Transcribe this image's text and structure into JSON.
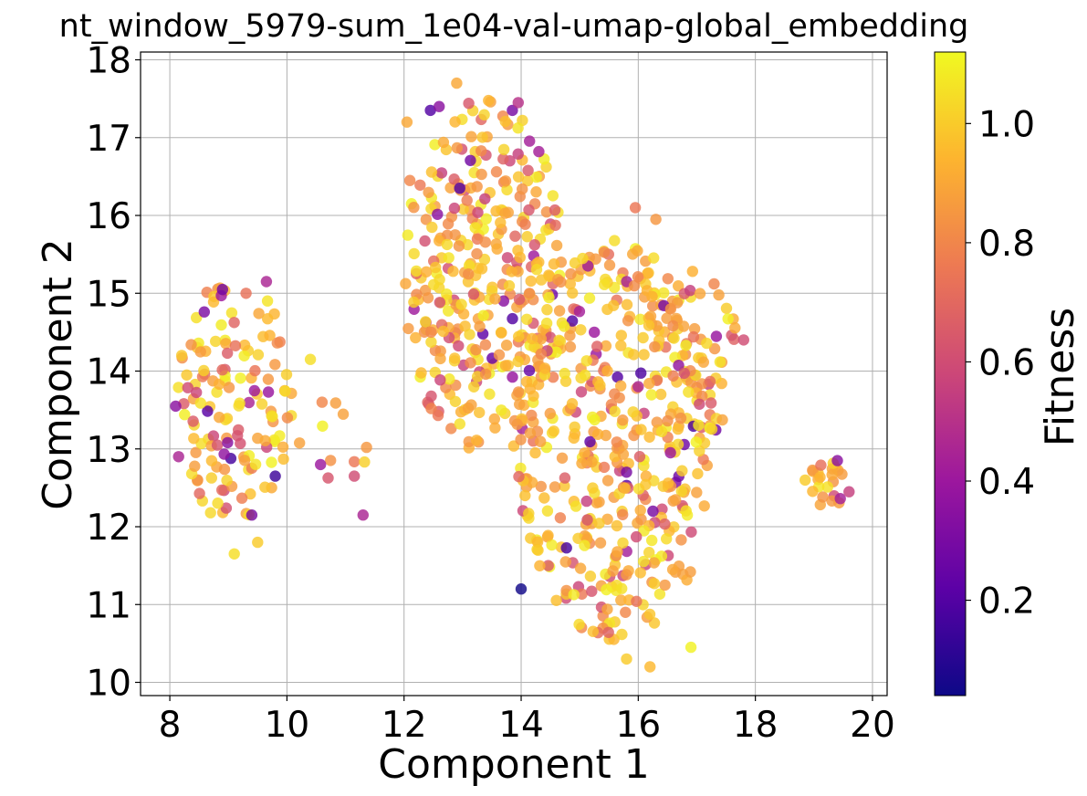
{
  "chart_data": {
    "type": "scatter",
    "title": "nt_window_5979-sum_1e04-val-umap-global_embedding",
    "xlabel": "Component 1",
    "ylabel": "Component 2",
    "xlim": [
      7.5,
      20.25
    ],
    "ylim": [
      9.83,
      18.1
    ],
    "xticks": [
      8,
      10,
      12,
      14,
      16,
      18,
      20
    ],
    "yticks": [
      10,
      11,
      12,
      13,
      14,
      15,
      16,
      17,
      18
    ],
    "grid": true,
    "colormap": "plasma",
    "colorbar": {
      "label": "Fitness",
      "range": [
        0.04,
        1.12
      ],
      "ticks": [
        0.2,
        0.4,
        0.6,
        0.8,
        1.0
      ],
      "tick_labels": [
        "0.2",
        "0.4",
        "0.6",
        "0.8",
        "1.0"
      ],
      "colors": [
        "#0d0887",
        "#5c01a6",
        "#9c179e",
        "#cc4778",
        "#ed7953",
        "#fdb42f",
        "#f0f921"
      ]
    },
    "clusters": [
      {
        "cx": 9.1,
        "cy": 13.6,
        "rx": 1.0,
        "ry": 1.6,
        "count": 140
      },
      {
        "cx": 10.8,
        "cy": 13.1,
        "rx": 0.6,
        "ry": 0.6,
        "count": 10
      },
      {
        "cx": 13.4,
        "cy": 15.2,
        "rx": 1.4,
        "ry": 2.3,
        "count": 330
      },
      {
        "cx": 15.6,
        "cy": 13.1,
        "rx": 1.7,
        "ry": 2.6,
        "count": 420
      },
      {
        "cx": 16.8,
        "cy": 14.2,
        "rx": 0.9,
        "ry": 1.2,
        "count": 60
      },
      {
        "cx": 19.25,
        "cy": 12.55,
        "rx": 0.35,
        "ry": 0.3,
        "count": 22
      }
    ],
    "points": [
      {
        "x": 8.1,
        "y": 13.55,
        "fitness": 0.35
      },
      {
        "x": 8.15,
        "y": 12.9,
        "fitness": 0.45
      },
      {
        "x": 9.8,
        "y": 12.65,
        "fitness": 0.15
      },
      {
        "x": 9.4,
        "y": 12.15,
        "fitness": 0.3
      },
      {
        "x": 9.65,
        "y": 15.15,
        "fitness": 0.45
      },
      {
        "x": 11.15,
        "y": 12.65,
        "fitness": 0.6
      },
      {
        "x": 11.3,
        "y": 12.15,
        "fitness": 0.45
      },
      {
        "x": 12.45,
        "y": 17.35,
        "fitness": 0.2
      },
      {
        "x": 12.6,
        "y": 17.4,
        "fitness": 0.35
      },
      {
        "x": 12.95,
        "y": 16.35,
        "fitness": 0.2
      },
      {
        "x": 13.85,
        "y": 17.35,
        "fitness": 0.3
      },
      {
        "x": 13.95,
        "y": 17.45,
        "fitness": 0.5
      },
      {
        "x": 14.0,
        "y": 11.2,
        "fitness": 0.05
      },
      {
        "x": 15.25,
        "y": 14.5,
        "fitness": 0.4
      },
      {
        "x": 15.8,
        "y": 12.7,
        "fitness": 0.3
      },
      {
        "x": 16.25,
        "y": 12.2,
        "fitness": 0.3
      },
      {
        "x": 16.55,
        "y": 12.95,
        "fitness": 0.4
      },
      {
        "x": 16.0,
        "y": 13.8,
        "fitness": 0.45
      },
      {
        "x": 17.8,
        "y": 14.4,
        "fitness": 0.6
      },
      {
        "x": 19.4,
        "y": 12.85,
        "fitness": 0.35
      },
      {
        "x": 19.6,
        "y": 12.45,
        "fitness": 0.55
      },
      {
        "x": 18.85,
        "y": 12.6,
        "fitness": 1.0
      },
      {
        "x": 16.2,
        "y": 10.2,
        "fitness": 0.95
      },
      {
        "x": 16.9,
        "y": 10.45,
        "fitness": 1.1
      },
      {
        "x": 15.8,
        "y": 10.3,
        "fitness": 1.0
      },
      {
        "x": 9.1,
        "y": 11.65,
        "fitness": 1.05
      },
      {
        "x": 9.5,
        "y": 11.8,
        "fitness": 1.0
      },
      {
        "x": 12.9,
        "y": 17.7,
        "fitness": 0.9
      },
      {
        "x": 10.4,
        "y": 14.15,
        "fitness": 1.05
      },
      {
        "x": 10.6,
        "y": 13.6,
        "fitness": 0.8
      },
      {
        "x": 15.95,
        "y": 16.1,
        "fitness": 0.75
      },
      {
        "x": 16.3,
        "y": 15.95,
        "fitness": 0.85
      },
      {
        "x": 12.1,
        "y": 16.45,
        "fitness": 0.8
      },
      {
        "x": 12.05,
        "y": 17.2,
        "fitness": 0.9
      }
    ]
  }
}
